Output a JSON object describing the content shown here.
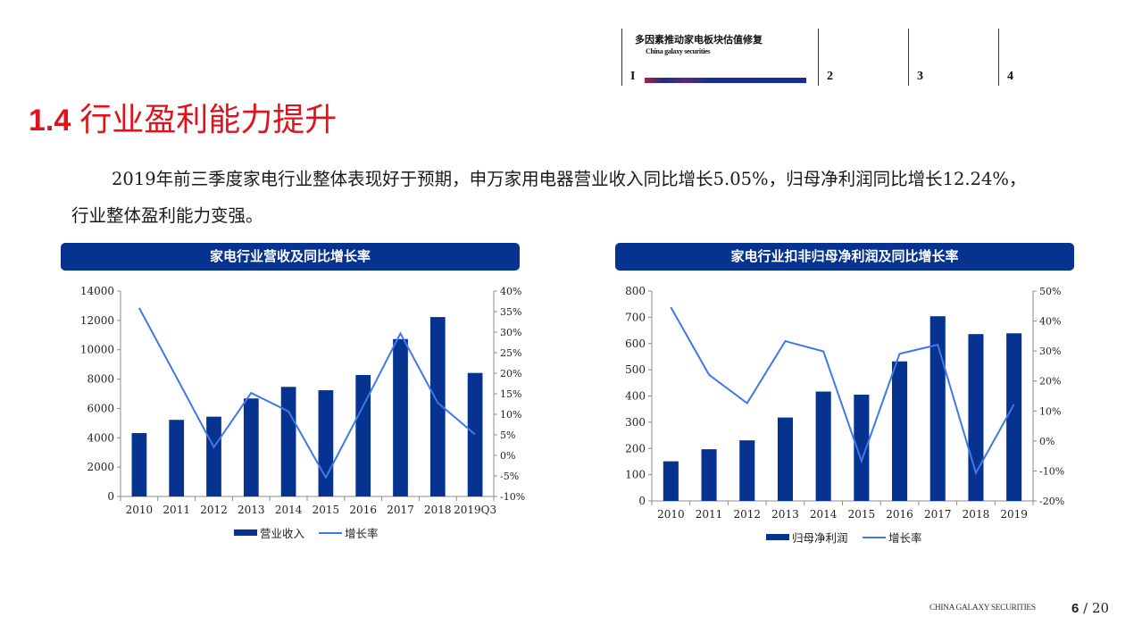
{
  "header": {
    "section_title": "多因素推动家电板块估值修复",
    "section_subtitle": "China galaxy securities",
    "sections": [
      {
        "num": "I",
        "active": true
      },
      {
        "num": "2",
        "active": false
      },
      {
        "num": "3",
        "active": false
      },
      {
        "num": "4",
        "active": false
      }
    ]
  },
  "title": {
    "number": "1.4",
    "text": "行业盈利能力提升",
    "color": "#e0131c"
  },
  "body": {
    "paragraph": "2019年前三季度家电行业整体表现好于预期，申万家用电器营业收入同比增长5.05%，归母净利润同比增长12.24%，行业整体盈利能力变强。"
  },
  "charts": {
    "left_title": "家电行业营收及同比增长率",
    "right_title": "家电行业扣非归母净利润及同比增长率"
  },
  "chart_data": [
    {
      "type": "bar",
      "title": "家电行业营收及同比增长率",
      "categories": [
        "2010",
        "2011",
        "2012",
        "2013",
        "2014",
        "2015",
        "2016",
        "2017",
        "2018",
        "2019Q3"
      ],
      "series": [
        {
          "name": "营业收入",
          "type": "bar",
          "axis": "left",
          "color": "#063290",
          "values": [
            4320,
            5220,
            5440,
            6680,
            7470,
            7240,
            8280,
            10730,
            12230,
            8420
          ]
        },
        {
          "name": "增长率",
          "type": "line",
          "axis": "right",
          "color": "#3f78ea",
          "values": [
            35.9,
            19.0,
            2.0,
            15.2,
            10.7,
            -5.4,
            12.0,
            29.7,
            12.8,
            5.1
          ]
        }
      ],
      "y_left": {
        "min": 0,
        "max": 14000,
        "ticks": [
          "0",
          "2000",
          "4000",
          "6000",
          "8000",
          "10000",
          "12000",
          "14000"
        ]
      },
      "y_right": {
        "min": -10,
        "max": 40,
        "ticks": [
          "-10%",
          "-5%",
          "0%",
          "5%",
          "10%",
          "15%",
          "20%",
          "25%",
          "30%",
          "35%",
          "40%"
        ]
      },
      "xlabel": "",
      "ylabel": "",
      "grid": false,
      "legend": {
        "position": "bottom",
        "entries": [
          "营业收入",
          "增长率"
        ]
      }
    },
    {
      "type": "bar",
      "title": "家电行业扣非归母净利润及同比增长率",
      "categories": [
        "2010",
        "2011",
        "2012",
        "2013",
        "2014",
        "2015",
        "2016",
        "2017",
        "2018",
        "2019"
      ],
      "series": [
        {
          "name": "归母净利润",
          "type": "bar",
          "axis": "left",
          "color": "#063290",
          "values": [
            151,
            197,
            231,
            318,
            417,
            405,
            532,
            704,
            636,
            639
          ]
        },
        {
          "name": "增长率",
          "type": "line",
          "axis": "right",
          "color": "#3f78ea",
          "values": [
            44.6,
            22.1,
            12.6,
            33.3,
            29.9,
            -6.7,
            29.1,
            32.1,
            -10.7,
            12.2
          ]
        }
      ],
      "y_left": {
        "min": 0,
        "max": 800,
        "ticks": [
          "0",
          "100",
          "200",
          "300",
          "400",
          "500",
          "600",
          "700",
          "800"
        ]
      },
      "y_right": {
        "min": -20,
        "max": 50,
        "ticks": [
          "-20%",
          "-10%",
          "0%",
          "10%",
          "20%",
          "30%",
          "40%",
          "50%"
        ]
      },
      "xlabel": "",
      "ylabel": "",
      "grid": false,
      "legend": {
        "position": "bottom",
        "entries": [
          "归母净利润",
          "增长率"
        ]
      }
    }
  ],
  "footer": {
    "brand": "CHINA GALAXY SECURITIES",
    "page_current": "6",
    "page_sep": "/",
    "page_total": "20"
  }
}
